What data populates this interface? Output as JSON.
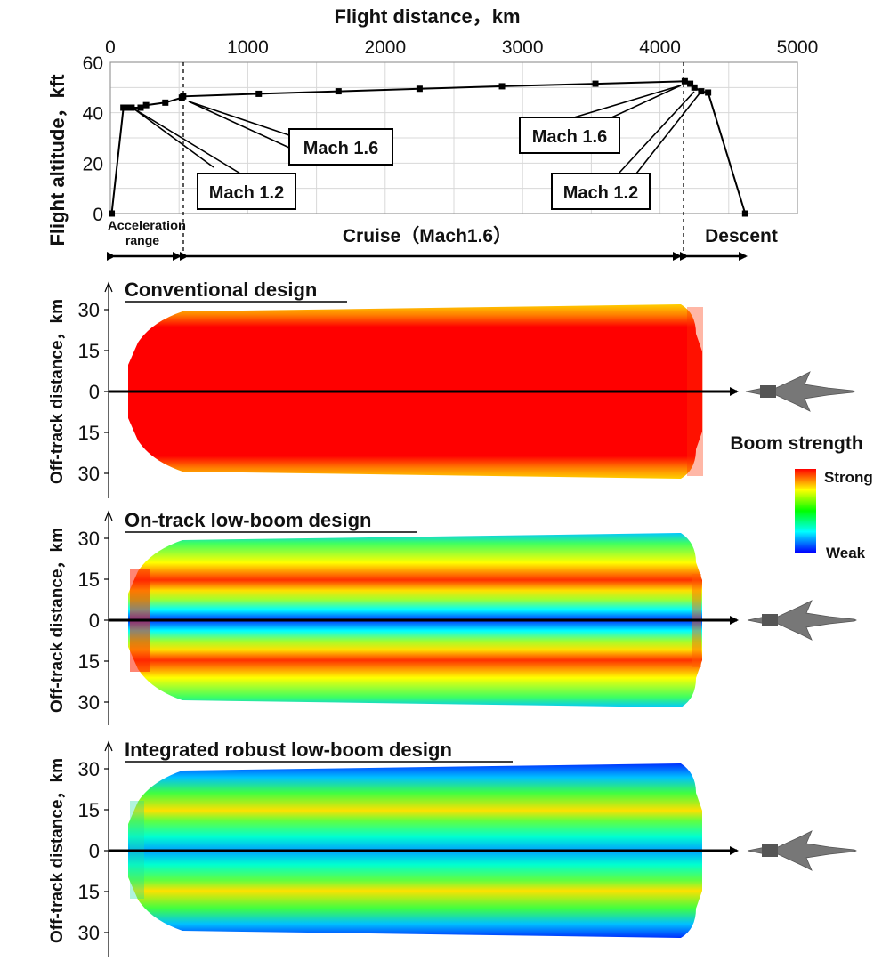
{
  "chart_data": [
    {
      "type": "line",
      "title": "",
      "xlabel": "Flight distance，km",
      "ylabel": "Flight altitude，kft",
      "xlim": [
        0,
        5000
      ],
      "ylim": [
        0,
        60
      ],
      "x_ticks": [
        "0",
        "1000",
        "2000",
        "3000",
        "4000",
        "5000"
      ],
      "y_ticks": [
        "0",
        "20",
        "40",
        "60"
      ],
      "grid": true,
      "series": [
        {
          "x": [
            10,
            95,
            130,
            155,
            220,
            260,
            400,
            520,
            530,
            1080,
            1660,
            2250,
            2850,
            3530,
            4180,
            4220,
            4250,
            4300,
            4350,
            4620
          ],
          "y": [
            0,
            42,
            42,
            42,
            42,
            43,
            44,
            46,
            46.5,
            47.5,
            48.5,
            49.5,
            50.5,
            51.5,
            52.5,
            51.5,
            50,
            48.5,
            48,
            0
          ]
        }
      ],
      "annotations": [
        {
          "label": "Mach 1.2",
          "x": 140,
          "y": 42
        },
        {
          "label": "Mach 1.6",
          "x": 530,
          "y": 46.5
        },
        {
          "label": "Mach 1.6",
          "x": 4180,
          "y": 52.5
        },
        {
          "label": "Mach 1.2",
          "x": 4330,
          "y": 48
        }
      ],
      "phases": [
        {
          "label_line1": "Acceleration",
          "label_line2": "range",
          "from": 0,
          "to": 530
        },
        {
          "label": "Cruise（Mach1.6）",
          "from": 530,
          "to": 4200
        },
        {
          "label": "Descent",
          "from": 4200,
          "to": 4620
        }
      ]
    },
    {
      "type": "heatmap",
      "panels": [
        {
          "title": "Conventional design"
        },
        {
          "title": "On-track low-boom design"
        },
        {
          "title": "Integrated robust low-boom design"
        }
      ],
      "ylabel": "Off-track distance，km",
      "y_ticks": [
        "30",
        "15",
        "0",
        "15",
        "30"
      ],
      "legend": {
        "title": "Boom strength",
        "high": "Strong",
        "low": "Weak",
        "placement": "right"
      }
    }
  ],
  "colors": {
    "strong": "#ff0000",
    "weak": "#0000ff"
  },
  "icons": {
    "aircraft": "supersonic-aircraft-icon"
  }
}
